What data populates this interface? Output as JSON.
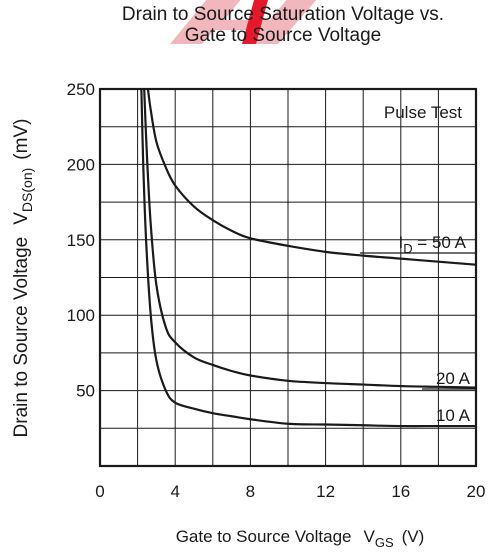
{
  "chart_data": {
    "type": "line",
    "title_line1": "Drain to Source Saturation Voltage vs.",
    "title_line2": "Gate to Source Voltage",
    "xlabel": {
      "text": "Gate to Source Voltage",
      "symbol": "V",
      "sub": "GS",
      "unit": "(V)"
    },
    "ylabel": {
      "text": "Drain to Source Voltage",
      "symbol": "V",
      "sub": "DS(on)",
      "unit": "(mV)"
    },
    "xlim": [
      0,
      20
    ],
    "ylim": [
      0,
      250
    ],
    "x_ticks": [
      0,
      4,
      8,
      12,
      16,
      20
    ],
    "y_ticks": [
      50,
      100,
      150,
      200,
      250
    ],
    "grid": true,
    "annotation": "Pulse Test",
    "series": [
      {
        "name_main": "I",
        "name_sub": "D",
        "name_rest": " = 50 A",
        "points": [
          [
            2.55,
            250
          ],
          [
            2.7,
            236
          ],
          [
            3,
            215
          ],
          [
            3.5,
            198
          ],
          [
            4,
            186
          ],
          [
            5,
            172
          ],
          [
            6,
            163
          ],
          [
            7,
            156
          ],
          [
            8,
            151
          ],
          [
            10,
            146
          ],
          [
            12,
            142
          ],
          [
            14,
            139.5
          ],
          [
            16,
            137.5
          ],
          [
            18,
            135.5
          ],
          [
            20,
            133.5
          ]
        ]
      },
      {
        "name_main": "20 A",
        "name_sub": "",
        "name_rest": "",
        "points": [
          [
            2.35,
            250
          ],
          [
            2.5,
            205
          ],
          [
            2.7,
            160
          ],
          [
            3,
            120
          ],
          [
            3.5,
            92
          ],
          [
            4,
            82
          ],
          [
            5,
            72
          ],
          [
            6,
            67
          ],
          [
            7,
            63
          ],
          [
            8,
            60
          ],
          [
            10,
            56.5
          ],
          [
            12,
            55
          ],
          [
            14,
            54
          ],
          [
            16,
            53
          ],
          [
            18,
            52.5
          ],
          [
            20,
            52
          ]
        ]
      },
      {
        "name_main": "10 A",
        "name_sub": "",
        "name_rest": "",
        "points": [
          [
            2.2,
            250
          ],
          [
            2.3,
            200
          ],
          [
            2.45,
            150
          ],
          [
            2.7,
            100
          ],
          [
            3,
            70
          ],
          [
            3.5,
            50
          ],
          [
            4,
            42
          ],
          [
            5,
            38
          ],
          [
            6,
            35
          ],
          [
            7,
            33
          ],
          [
            8,
            31
          ],
          [
            10,
            28
          ],
          [
            12,
            27.5
          ],
          [
            14,
            27
          ],
          [
            16,
            26.5
          ],
          [
            18,
            26.5
          ],
          [
            20,
            26.5
          ]
        ]
      }
    ]
  }
}
